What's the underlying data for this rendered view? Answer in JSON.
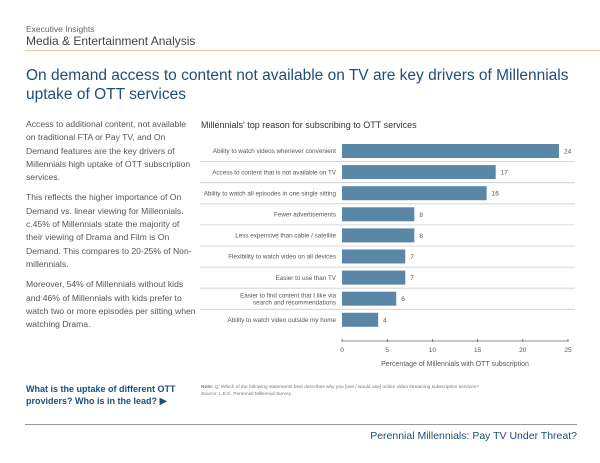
{
  "header": {
    "kicker": "Executive Insights",
    "section": "Media & Entertainment Analysis"
  },
  "title": "On demand access to content not available on TV are key drivers of Millennials uptake of OTT services",
  "body": [
    "Access to additional content, not available on traditional FTA or Pay TV, and  On Demand features  are the key drivers of Millennials high uptake of OTT subscription services.",
    "This reflects the higher importance of On Demand vs. linear viewing for Millennials.  c.45% of Millennials state the majority of their viewing of Drama and Film is On Demand. This compares to 20-25% of Non-millennials.",
    "Moreover, 54% of Millennials without kids and 46% of Millennials with kids prefer to watch two or more episodes per sitting when watching Drama."
  ],
  "cta": {
    "text": "What is the uptake of different OTT providers? Who is in the lead?",
    "arrow": "▶"
  },
  "note": {
    "label": "Note:",
    "text": "Q: Which of the following statements best describes why you [use / would use] online video streaming subscription services?",
    "source": "Source: L.E.K. Perennial Millennial Survey"
  },
  "footer": "Perennial Millennials: Pay TV Under Threat?",
  "colors": {
    "bar": "#5b87a6",
    "title": "#1f4e79",
    "accent": "#f3c69c"
  },
  "chart_data": {
    "type": "bar",
    "orientation": "horizontal",
    "title": "Millennials' top reason for subscribing to OTT services",
    "xlabel": "Percentage of Millennials with OTT subscription",
    "ylabel": "",
    "xlim": [
      0,
      25
    ],
    "xticks": [
      0,
      5,
      10,
      15,
      20,
      25
    ],
    "categories": [
      [
        "Ability to watch videos whenever convenient"
      ],
      [
        "Access to content that is not available on TV"
      ],
      [
        "Ability to watch all episodes in one single sitting"
      ],
      [
        "Fewer advertisements"
      ],
      [
        "Less expensive than cable / satellite"
      ],
      [
        "Flexibility to watch video on all devices"
      ],
      [
        "Easier to use than TV"
      ],
      [
        "Easier to find content that I like via",
        "search and recommendations"
      ],
      [
        "Ability to watch video outside my home"
      ]
    ],
    "values": [
      24,
      17,
      16,
      8,
      8,
      7,
      7,
      6,
      4
    ],
    "grid": false
  }
}
